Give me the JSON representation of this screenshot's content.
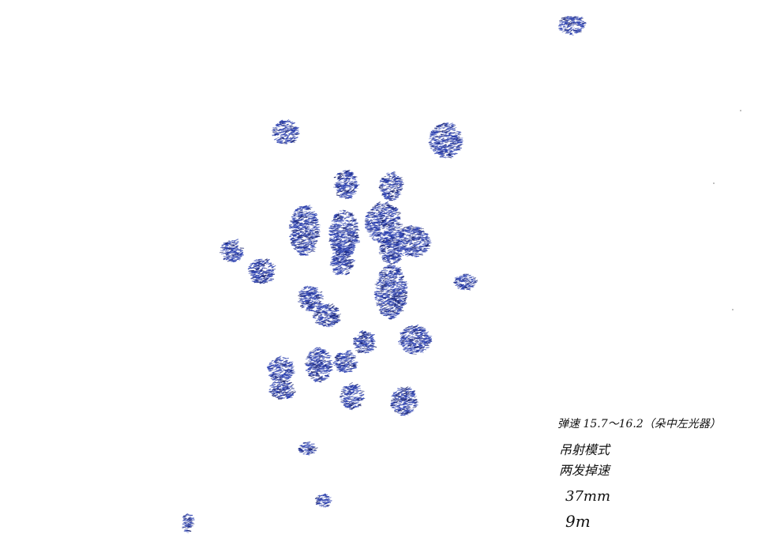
{
  "image": {
    "description_free": true,
    "ink_color": "#2a3fb0",
    "dark_ink_color": "#16206e",
    "paper_color": "#ffffff"
  },
  "notes": {
    "line1": "弹速 15.7～16.2（朵中左光器）",
    "line2": "吊射模式",
    "line3": "两发掉速",
    "line4": "37mm",
    "line5": "9m"
  },
  "shot_count": 28
}
